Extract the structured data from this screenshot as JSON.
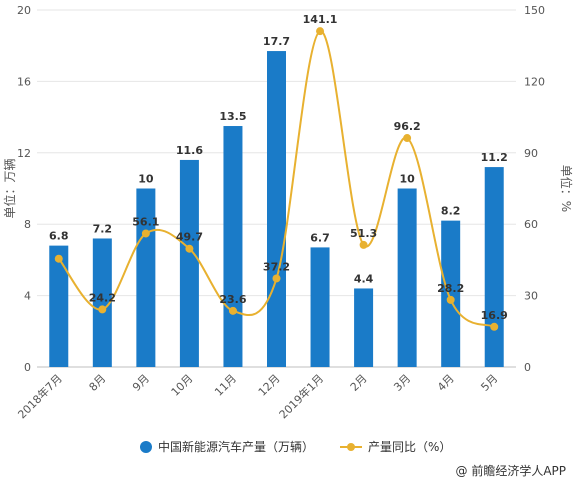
{
  "chart_data": {
    "type": "bar",
    "categories": [
      "2018年7月",
      "8月",
      "9月",
      "10月",
      "11月",
      "12月",
      "2019年1月",
      "2月",
      "3月",
      "4月",
      "5月"
    ],
    "series": [
      {
        "name": "中国新能源汽车产量（万辆）",
        "type": "bar",
        "axis": "left",
        "values": [
          6.8,
          7.2,
          10,
          11.6,
          13.5,
          17.7,
          6.7,
          4.4,
          10,
          8.2,
          11.2
        ],
        "labels": [
          "6.8",
          "7.2",
          "10",
          "11.6",
          "13.5",
          "17.7",
          "6.7",
          "4.4",
          "10",
          "8.2",
          "11.2"
        ]
      },
      {
        "name": "产量同比（%）",
        "type": "line",
        "axis": "right",
        "values": [
          45.5,
          24.2,
          56.1,
          49.7,
          23.6,
          37.2,
          141.1,
          51.3,
          96.2,
          28.2,
          16.9
        ],
        "labels": [
          "",
          "24.2",
          "56.1",
          "49.7",
          "23.6",
          "37.2",
          "141.1",
          "51.3",
          "96.2",
          "28.2",
          "16.9"
        ]
      }
    ],
    "ylabel": "单位：万辆",
    "y2label": "单位：%",
    "ylim": [
      0,
      20
    ],
    "y2lim": [
      0,
      150
    ],
    "yticks": [
      "0",
      "4",
      "8",
      "12",
      "16",
      "20"
    ],
    "y2ticks": [
      "0",
      "30",
      "60",
      "90",
      "120",
      "150"
    ],
    "legend_position": "bottom",
    "colors": {
      "bar": "#1a7bc8",
      "line": "#e8b130"
    }
  },
  "source": "@ 前瞻经济学人APP"
}
